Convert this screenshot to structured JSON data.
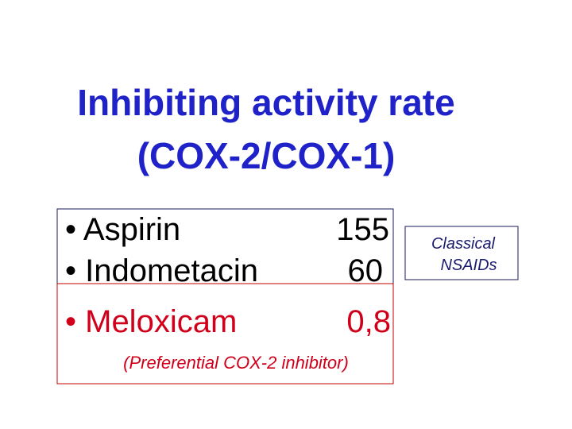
{
  "title": {
    "lines": [
      "Inhibiting activity rate",
      "(COX-2/COX-1)"
    ]
  },
  "items": [
    {
      "name": "• Aspirin",
      "value": "155"
    },
    {
      "name": "• Indometacin",
      "value": "60"
    },
    {
      "name": "• Meloxicam",
      "value": "0,8"
    }
  ],
  "note": "(Preferential COX-2 inhibitor)",
  "side_label": {
    "lines": [
      "Classical",
      "NSAIDs"
    ]
  }
}
